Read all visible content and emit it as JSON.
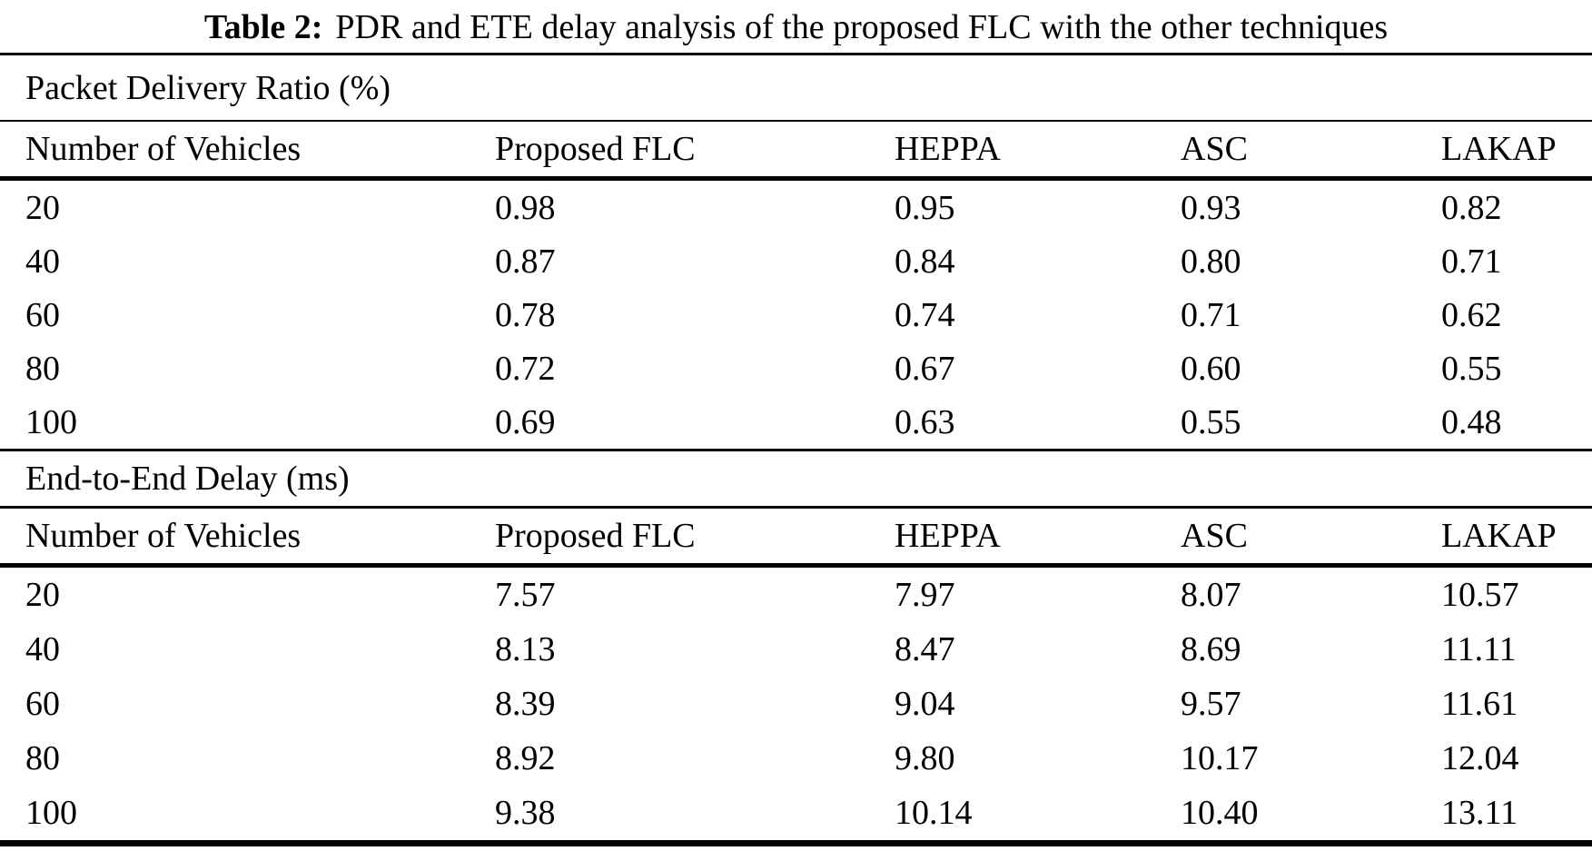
{
  "caption": {
    "label": "Table 2:",
    "text": "PDR and ETE delay analysis of the proposed FLC with the other techniques"
  },
  "chart_data": {
    "type": "table",
    "title": "Table 2: PDR and ETE delay analysis of the proposed FLC with the other techniques",
    "sections": [
      {
        "header": "Packet Delivery Ratio (%)",
        "columns": [
          "Number of Vehicles",
          "Proposed FLC",
          "HEPPA",
          "ASC",
          "LAKAP"
        ],
        "rows": [
          [
            "20",
            "0.98",
            "0.95",
            "0.93",
            "0.82"
          ],
          [
            "40",
            "0.87",
            "0.84",
            "0.80",
            "0.71"
          ],
          [
            "60",
            "0.78",
            "0.74",
            "0.71",
            "0.62"
          ],
          [
            "80",
            "0.72",
            "0.67",
            "0.60",
            "0.55"
          ],
          [
            "100",
            "0.69",
            "0.63",
            "0.55",
            "0.48"
          ]
        ]
      },
      {
        "header": "End-to-End Delay (ms)",
        "columns": [
          "Number of Vehicles",
          "Proposed FLC",
          "HEPPA",
          "ASC",
          "LAKAP"
        ],
        "rows": [
          [
            "20",
            "7.57",
            "7.97",
            "8.07",
            "10.57"
          ],
          [
            "40",
            "8.13",
            "8.47",
            "8.69",
            "11.11"
          ],
          [
            "60",
            "8.39",
            "9.04",
            "9.57",
            "11.61"
          ],
          [
            "80",
            "8.92",
            "9.80",
            "10.17",
            "12.04"
          ],
          [
            "100",
            "9.38",
            "10.14",
            "10.40",
            "13.11"
          ]
        ]
      }
    ]
  }
}
